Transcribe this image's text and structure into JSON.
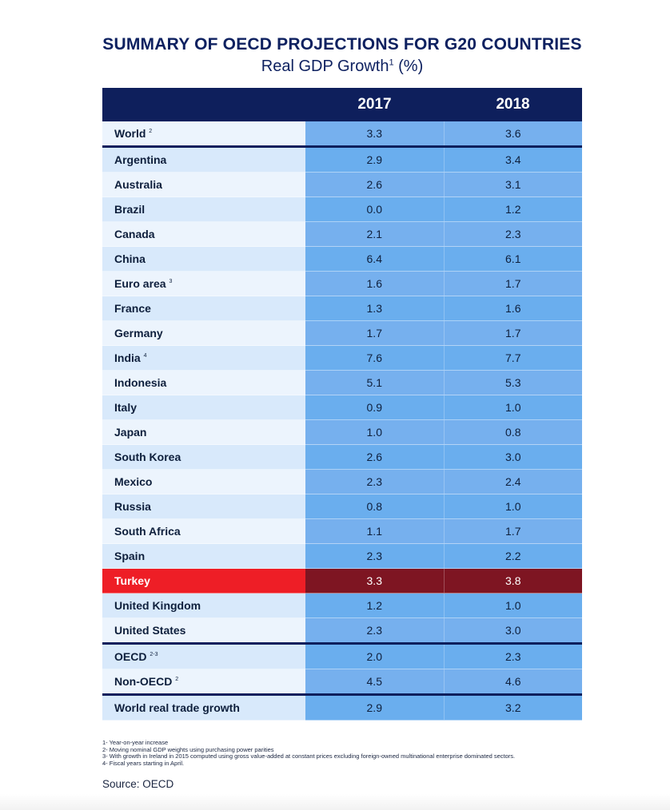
{
  "title": "SUMMARY OF OECD PROJECTIONS FOR G20 COUNTRIES",
  "subtitle_main": "Real GDP Growth",
  "subtitle_sup": "1",
  "subtitle_unit": "(%)",
  "colors": {
    "header": "#0e1f5c",
    "highlight_label": "#ee1e26",
    "highlight_values": "#7e1522"
  },
  "chart_data": {
    "type": "table",
    "columns": [
      "",
      "2017",
      "2018"
    ],
    "rows": [
      {
        "name": "World",
        "sup": "2",
        "values": [
          "3.3",
          "3.6"
        ]
      },
      {
        "name": "Argentina",
        "sup": "",
        "values": [
          "2.9",
          "3.4"
        ]
      },
      {
        "name": "Australia",
        "sup": "",
        "values": [
          "2.6",
          "3.1"
        ]
      },
      {
        "name": "Brazil",
        "sup": "",
        "values": [
          "0.0",
          "1.2"
        ]
      },
      {
        "name": "Canada",
        "sup": "",
        "values": [
          "2.1",
          "2.3"
        ]
      },
      {
        "name": "China",
        "sup": "",
        "values": [
          "6.4",
          "6.1"
        ]
      },
      {
        "name": "Euro area",
        "sup": "3",
        "values": [
          "1.6",
          "1.7"
        ]
      },
      {
        "name": "France",
        "sup": "",
        "values": [
          "1.3",
          "1.6"
        ]
      },
      {
        "name": "Germany",
        "sup": "",
        "values": [
          "1.7",
          "1.7"
        ]
      },
      {
        "name": "India",
        "sup": "4",
        "values": [
          "7.6",
          "7.7"
        ]
      },
      {
        "name": "Indonesia",
        "sup": "",
        "values": [
          "5.1",
          "5.3"
        ]
      },
      {
        "name": "Italy",
        "sup": "",
        "values": [
          "0.9",
          "1.0"
        ]
      },
      {
        "name": "Japan",
        "sup": "",
        "values": [
          "1.0",
          "0.8"
        ]
      },
      {
        "name": "South Korea",
        "sup": "",
        "values": [
          "2.6",
          "3.0"
        ]
      },
      {
        "name": "Mexico",
        "sup": "",
        "values": [
          "2.3",
          "2.4"
        ]
      },
      {
        "name": "Russia",
        "sup": "",
        "values": [
          "0.8",
          "1.0"
        ]
      },
      {
        "name": "South Africa",
        "sup": "",
        "values": [
          "1.1",
          "1.7"
        ]
      },
      {
        "name": "Spain",
        "sup": "",
        "values": [
          "2.3",
          "2.2"
        ]
      },
      {
        "name": "Turkey",
        "sup": "",
        "values": [
          "3.3",
          "3.8"
        ],
        "highlight": true
      },
      {
        "name": "United Kingdom",
        "sup": "",
        "values": [
          "1.2",
          "1.0"
        ]
      },
      {
        "name": "United States",
        "sup": "",
        "values": [
          "2.3",
          "3.0"
        ]
      },
      {
        "name": "OECD",
        "sup": "2-3",
        "values": [
          "2.0",
          "2.3"
        ]
      },
      {
        "name": "Non-OECD",
        "sup": "2",
        "values": [
          "4.5",
          "4.6"
        ]
      },
      {
        "name": "World real trade growth",
        "sup": "",
        "values": [
          "2.9",
          "3.2"
        ]
      }
    ],
    "separators_before": [
      "Argentina",
      "OECD",
      "World real trade growth"
    ]
  },
  "footnotes": [
    "1- Year-on-year increase",
    "2- Moving nominal GDP weights using purchasing power parities",
    "3- With growth in Ireland in 2015 computed using gross value-added at constant prices excluding foreign-owned multinational enterprise dominated sectors.",
    "4- Fiscal years starting in April."
  ],
  "source": "Source: OECD"
}
